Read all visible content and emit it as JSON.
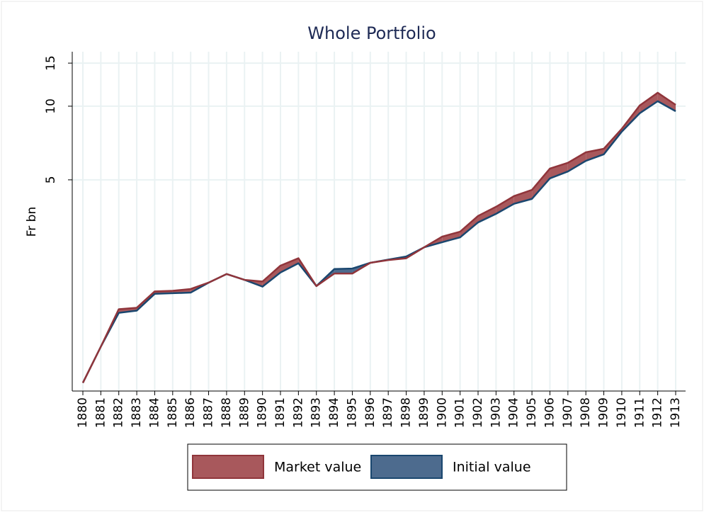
{
  "chart_data": {
    "type": "line",
    "title": "Whole Portfolio",
    "y_label": "Fr bn",
    "log_scale": true,
    "grid": true,
    "legend_position": "bottom",
    "categories": [
      "1880",
      "1881",
      "1882",
      "1883",
      "1884",
      "1885",
      "1886",
      "1887",
      "1888",
      "1889",
      "1890",
      "1891",
      "1892",
      "1893",
      "1894",
      "1895",
      "1896",
      "1897",
      "1898",
      "1899",
      "1900",
      "1901",
      "1902",
      "1903",
      "1904",
      "1905",
      "1906",
      "1907",
      "1908",
      "1909",
      "1910",
      "1911",
      "1912",
      "1913"
    ],
    "series": [
      {
        "name": "Market value",
        "color": "#90353b",
        "fill": "#a8585c",
        "values": [
          0.74,
          1.04,
          1.48,
          1.5,
          1.75,
          1.76,
          1.79,
          1.9,
          2.06,
          1.95,
          1.92,
          2.23,
          2.39,
          1.84,
          2.07,
          2.07,
          2.29,
          2.35,
          2.39,
          2.65,
          2.93,
          3.07,
          3.56,
          3.88,
          4.29,
          4.55,
          5.56,
          5.87,
          6.48,
          6.7,
          8.08,
          10.07,
          11.35,
          10.13
        ]
      },
      {
        "name": "Initial value",
        "color": "#1a476f",
        "fill": "#4d6b8e",
        "values": [
          0.74,
          1.04,
          1.43,
          1.46,
          1.71,
          1.72,
          1.73,
          1.9,
          2.06,
          1.95,
          1.83,
          2.09,
          2.28,
          1.84,
          2.16,
          2.17,
          2.29,
          2.36,
          2.43,
          2.65,
          2.78,
          2.91,
          3.35,
          3.63,
          3.99,
          4.18,
          5.07,
          5.41,
          5.98,
          6.36,
          7.87,
          9.36,
          10.48,
          9.54
        ]
      }
    ],
    "ylim": [
      0.685,
      16.7
    ],
    "yticks": [
      5,
      10,
      15
    ]
  }
}
